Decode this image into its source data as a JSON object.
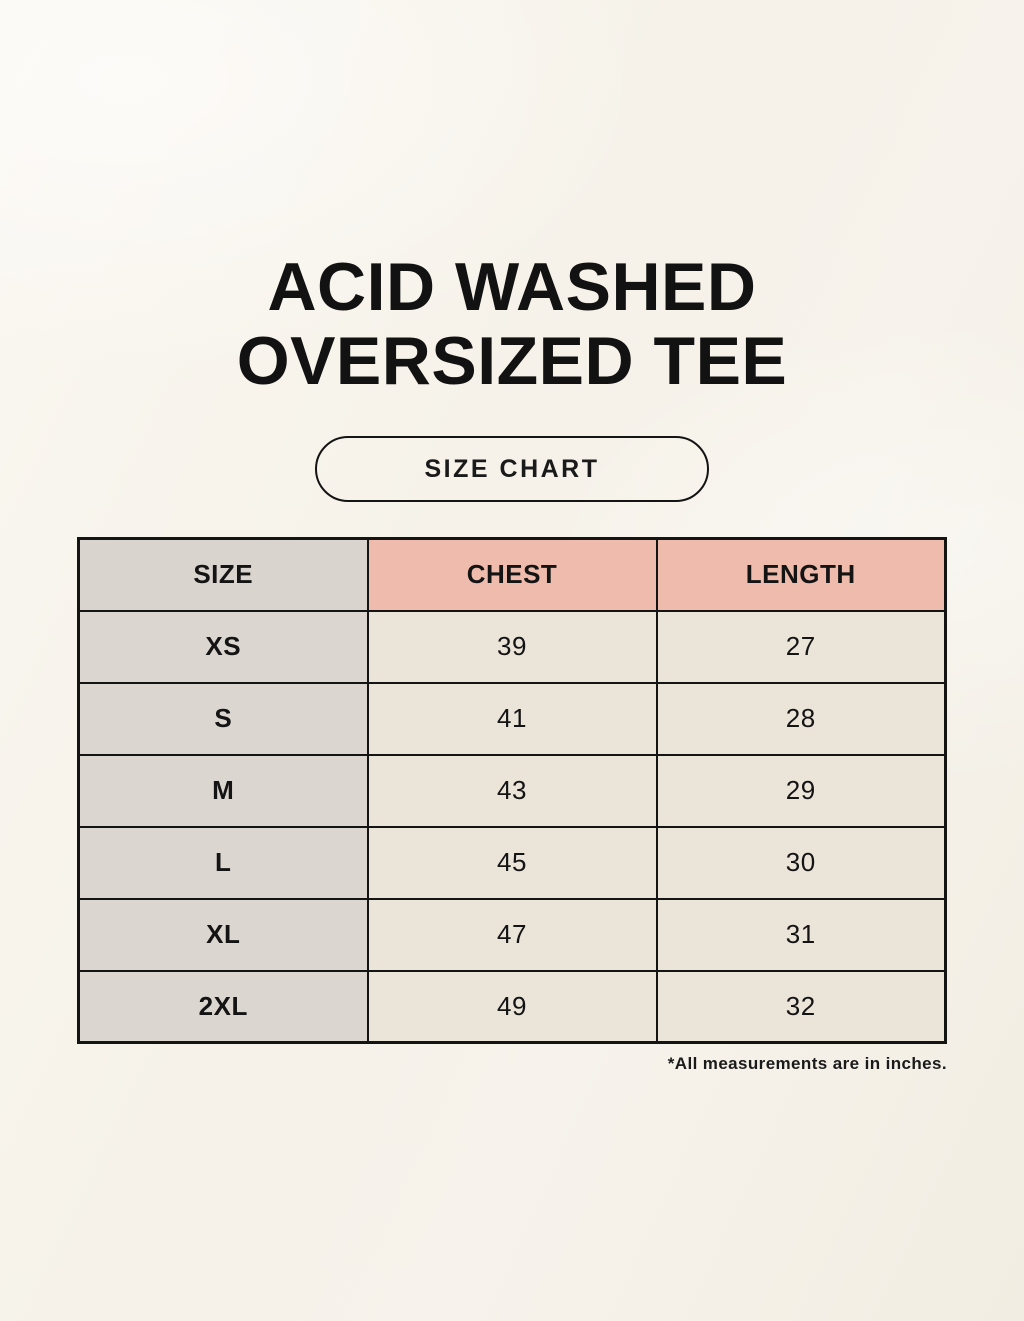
{
  "page": {
    "title_line1": "ACID WASHED",
    "title_line2": "OVERSIZED TEE",
    "badge_label": "SIZE CHART",
    "footnote": "*All measurements are in inches."
  },
  "size_chart": {
    "headers": [
      "SIZE",
      "CHEST",
      "LENGTH"
    ],
    "rows": [
      [
        "XS",
        "39",
        "27"
      ],
      [
        "S",
        "41",
        "28"
      ],
      [
        "M",
        "43",
        "29"
      ],
      [
        "L",
        "45",
        "30"
      ],
      [
        "XL",
        "47",
        "31"
      ],
      [
        "2XL",
        "49",
        "32"
      ]
    ],
    "units": "inches"
  },
  "colors": {
    "background": "#f6f2e9",
    "header_pink": "#eebbac",
    "column_gray": "#dcd6d0",
    "cell_beige": "#eae4d9",
    "border": "#141414"
  }
}
